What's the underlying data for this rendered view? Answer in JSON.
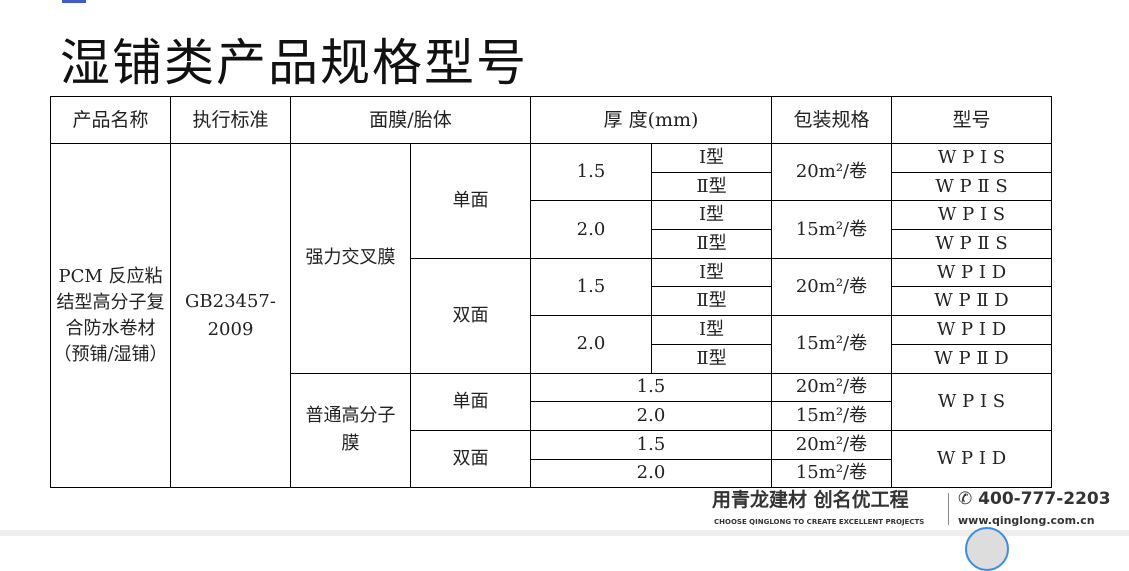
{
  "title": "湿铺类产品规格型号",
  "headers": [
    "产品名称",
    "执行标准",
    "面膜/胎体",
    "厚 度(mm)",
    "包装规格",
    "型号"
  ],
  "product_name": "PCM 反应粘结型高分子复合防水卷材（预铺/湿铺）",
  "standard": "GB23457-2009",
  "films": [
    "强力交叉膜",
    "普通高分子膜"
  ],
  "sides": [
    "单面",
    "双面"
  ],
  "thickness": [
    "1.5",
    "2.0"
  ],
  "types": [
    "Ⅰ型",
    "Ⅱ型"
  ],
  "packs": [
    "20m²/卷",
    "15m²/卷"
  ],
  "models": [
    "W P I S",
    "W P Ⅱ S",
    "W P I D",
    "W P Ⅱ D"
  ],
  "footer": {
    "slogan": "用青龙建材  创名优工程",
    "english": "CHOOSE QINGLONG TO CREATE EXCELLENT PROJECTS",
    "phone": "400-777-2203",
    "url": "www.qinglong.com.cn"
  }
}
